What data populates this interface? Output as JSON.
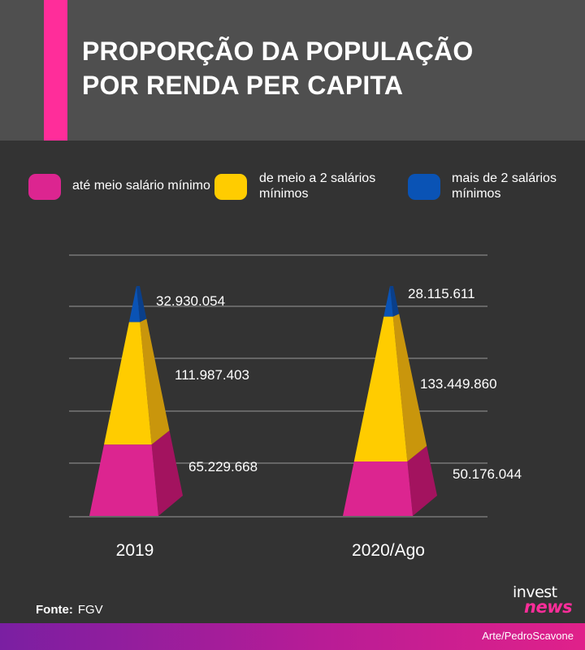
{
  "header": {
    "title_line1": "PROPORÇÃO DA POPULAÇÃO",
    "title_line2": "POR RENDA PER CAPITA"
  },
  "colors": {
    "header_bg": "#4f4f4f",
    "accent_bar": "#ff2d9a",
    "background": "#333333"
  },
  "legend": [
    {
      "label": "até meio salário mínimo",
      "color": "#dc2590"
    },
    {
      "label": "de meio a 2 salários mínimos",
      "color": "#ffcc00"
    },
    {
      "label": "mais de 2 salários mínimos",
      "color": "#0a53b5"
    }
  ],
  "chart_data": {
    "type": "bar",
    "categories": [
      "2019",
      "2020/Ago"
    ],
    "series": [
      {
        "name": "até meio salário mínimo",
        "color": "#dc2590",
        "side_color": "#a3135f",
        "values": [
          65229668,
          50176044
        ],
        "labels": [
          "65.229.668",
          "50.176.044"
        ]
      },
      {
        "name": "de meio a 2 salários mínimos",
        "color": "#ffcc00",
        "side_color": "#c9960c",
        "values": [
          111987403,
          133449860
        ],
        "labels": [
          "111.987.403",
          "133.449.860"
        ]
      },
      {
        "name": "mais de 2 salários mínimos",
        "color": "#0a53b5",
        "side_color": "#0a3f8a",
        "values": [
          32930054,
          28115611
        ],
        "labels": [
          "32.930.054",
          "28.115.611"
        ]
      }
    ],
    "stacked": true,
    "grid": true
  },
  "footer": {
    "source_label": "Fonte:",
    "source_value": "FGV",
    "credit": "Arte/PedroScavone",
    "logo_top": "invest",
    "logo_bottom": "news"
  }
}
